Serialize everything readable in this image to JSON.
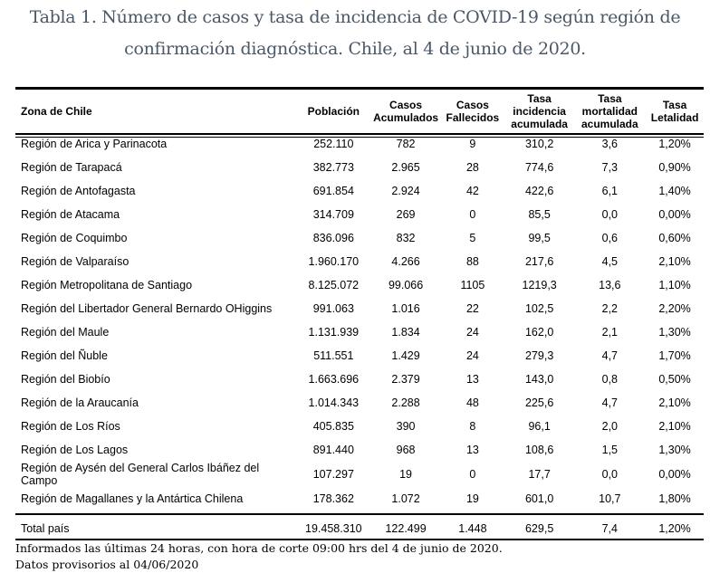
{
  "title": {
    "line1": "Tabla 1. Número de casos y tasa de incidencia de COVID-19 según región de",
    "line2": "confirmación diagnóstica. Chile, al 4 de junio de 2020."
  },
  "table": {
    "headers": [
      "Zona de Chile",
      "Población",
      "Casos Acumulados",
      "Casos Fallecidos",
      "Tasa incidencia acumulada",
      "Tasa mortalidad acumulada",
      "Tasa Letalidad"
    ],
    "rows": [
      [
        "Región de Arica y Parinacota",
        "252.110",
        "782",
        "9",
        "310,2",
        "3,6",
        "1,20%"
      ],
      [
        "Región de Tarapacá",
        "382.773",
        "2.965",
        "28",
        "774,6",
        "7,3",
        "0,90%"
      ],
      [
        "Región de Antofagasta",
        "691.854",
        "2.924",
        "42",
        "422,6",
        "6,1",
        "1,40%"
      ],
      [
        "Región de Atacama",
        "314.709",
        "269",
        "0",
        "85,5",
        "0,0",
        "0,00%"
      ],
      [
        "Región de Coquimbo",
        "836.096",
        "832",
        "5",
        "99,5",
        "0,6",
        "0,60%"
      ],
      [
        "Región de Valparaíso",
        "1.960.170",
        "4.266",
        "88",
        "217,6",
        "4,5",
        "2,10%"
      ],
      [
        "Región Metropolitana de Santiago",
        "8.125.072",
        "99.066",
        "1105",
        "1219,3",
        "13,6",
        "1,10%"
      ],
      [
        "Región del Libertador General Bernardo OHiggins",
        "991.063",
        "1.016",
        "22",
        "102,5",
        "2,2",
        "2,20%"
      ],
      [
        "Región del Maule",
        "1.131.939",
        "1.834",
        "24",
        "162,0",
        "2,1",
        "1,30%"
      ],
      [
        "Región del Ñuble",
        "511.551",
        "1.429",
        "24",
        "279,3",
        "4,7",
        "1,70%"
      ],
      [
        "Región del Biobío",
        "1.663.696",
        "2.379",
        "13",
        "143,0",
        "0,8",
        "0,50%"
      ],
      [
        "Región de la Araucanía",
        "1.014.343",
        "2.288",
        "48",
        "225,6",
        "4,7",
        "2,10%"
      ],
      [
        "Región de Los Ríos",
        "405.835",
        "390",
        "8",
        "96,1",
        "2,0",
        "2,10%"
      ],
      [
        "Región de Los Lagos",
        "891.440",
        "968",
        "13",
        "108,6",
        "1,5",
        "1,30%"
      ],
      [
        "Región de Aysén del General Carlos Ibáñez del Campo",
        "107.297",
        "19",
        "0",
        "17,7",
        "0,0",
        "0,00%"
      ],
      [
        "Región de Magallanes y la Antártica Chilena",
        "178.362",
        "1.072",
        "19",
        "601,0",
        "10,7",
        "1,80%"
      ]
    ],
    "total": [
      "Total país",
      "19.458.310",
      "122.499",
      "1.448",
      "629,5",
      "7,4",
      "1,20%"
    ]
  },
  "footer": {
    "note1": "Informados las últimas 24 horas, con hora de corte 09:00 hrs del 4 de junio de 2020.",
    "note2": "Datos provisorios al 04/06/2020"
  }
}
